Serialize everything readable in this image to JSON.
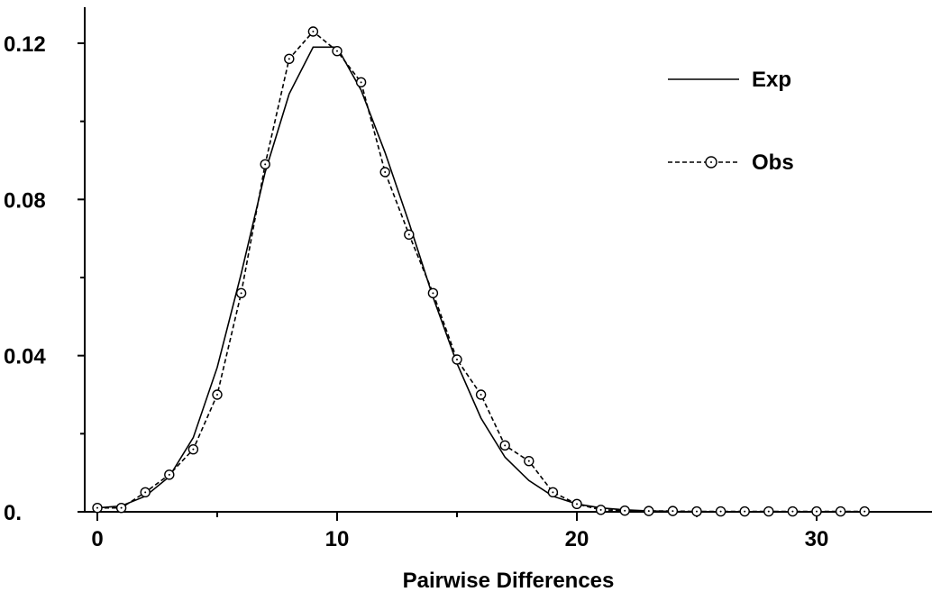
{
  "chart_data": {
    "type": "line",
    "title": "",
    "xlabel": "Pairwise Differences",
    "ylabel": "",
    "xlim": [
      -1,
      34
    ],
    "ylim": [
      0,
      0.126
    ],
    "x_ticks": [
      0,
      10,
      20,
      30
    ],
    "x_tick_labels": [
      "0",
      "10",
      "20",
      "30"
    ],
    "y_ticks": [
      0,
      0.04,
      0.08,
      0.12
    ],
    "y_tick_labels": [
      "0.",
      "0.04",
      "0.08",
      "0.12"
    ],
    "grid": false,
    "legend_position": "top-right",
    "series": [
      {
        "name": "Exp",
        "style": "solid",
        "marker": "none",
        "x": [
          0,
          1,
          2,
          3,
          4,
          5,
          6,
          7,
          8,
          9,
          10,
          11,
          12,
          13,
          14,
          15,
          16,
          17,
          18,
          19,
          20,
          21,
          22,
          23,
          24,
          25,
          26,
          27,
          28,
          29,
          30,
          31,
          32,
          33,
          34
        ],
        "values": [
          0.001,
          0.0015,
          0.004,
          0.009,
          0.019,
          0.037,
          0.061,
          0.087,
          0.107,
          0.119,
          0.119,
          0.108,
          0.092,
          0.074,
          0.055,
          0.038,
          0.024,
          0.014,
          0.008,
          0.004,
          0.002,
          0.001,
          0.0005,
          0.0002,
          0.0001,
          0,
          0,
          0,
          0,
          0,
          0,
          0,
          0,
          0,
          0
        ]
      },
      {
        "name": "Obs",
        "style": "dashed",
        "marker": "circle",
        "x": [
          0,
          1,
          2,
          3,
          4,
          5,
          6,
          7,
          8,
          9,
          10,
          11,
          12,
          13,
          14,
          15,
          16,
          17,
          18,
          19,
          20,
          21,
          22,
          23,
          24,
          25,
          26,
          27,
          28,
          29,
          30,
          31,
          32
        ],
        "values": [
          0.001,
          0.001,
          0.005,
          0.0095,
          0.016,
          0.03,
          0.056,
          0.089,
          0.116,
          0.123,
          0.118,
          0.11,
          0.087,
          0.071,
          0.056,
          0.039,
          0.03,
          0.017,
          0.013,
          0.005,
          0.002,
          0.0005,
          0.0003,
          0.0002,
          0.0002,
          0.0001,
          0.0001,
          0.0001,
          0.0001,
          0.0001,
          0.0001,
          0.0001,
          0.0001
        ]
      }
    ]
  },
  "colors": {
    "axis": "#000000",
    "background": "#ffffff"
  }
}
